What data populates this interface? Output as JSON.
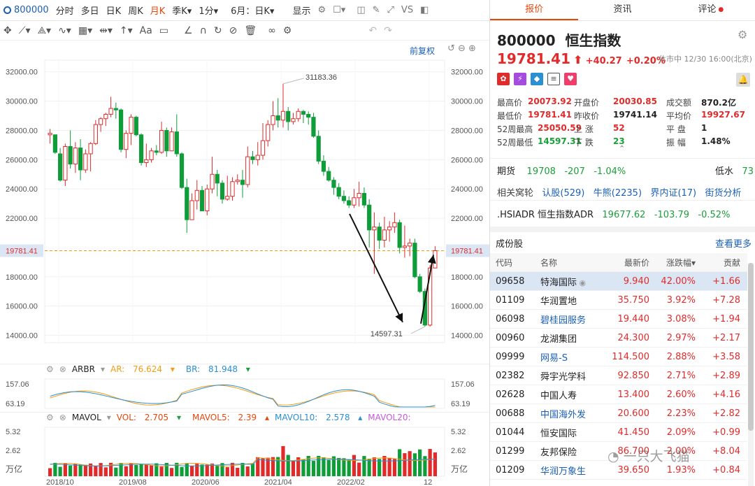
{
  "topbar": {
    "code": "800000",
    "tabs": [
      "分时",
      "多日",
      "日K",
      "周K",
      "月K",
      "季K▾",
      "1分▾",
      "6月：日K▾"
    ],
    "active_tab": "月K",
    "display": "显示",
    "vs": "VS"
  },
  "chart_top": {
    "fq": "前复权"
  },
  "yaxis": {
    "left": [
      "32000.00",
      "30000.00",
      "28000.00",
      "26000.00",
      "24000.00",
      "22000.00",
      "19781.41",
      "18000.00",
      "16000.00",
      "14000.00"
    ],
    "right": [
      "32000.00",
      "30000.00",
      "28000.00",
      "26000.00",
      "24000.00",
      "22000.00",
      "19781.41",
      "18000.00",
      "16000.00",
      "14000.00"
    ],
    "ticks": [
      32000,
      30000,
      28000,
      26000,
      24000,
      22000,
      18000,
      16000,
      14000
    ],
    "current": 19781.41,
    "current_label": "19781.41"
  },
  "annotations": {
    "high": "31183.36",
    "low": "14597.31"
  },
  "chart_data": {
    "type": "candlestick",
    "title": "800000 恒生指数 月K",
    "current": 19781.41,
    "high_label": 31183.36,
    "low_label": 14597.31,
    "ylim": [
      13500,
      32800
    ],
    "candles": [
      [
        27700,
        27800,
        28100,
        27100
      ],
      [
        27700,
        26500,
        27700,
        26400
      ],
      [
        26400,
        24600,
        26800,
        24500
      ],
      [
        24600,
        26900,
        27100,
        24200
      ],
      [
        26900,
        25700,
        28000,
        25400
      ],
      [
        25700,
        26800,
        27200,
        25100
      ],
      [
        26800,
        25300,
        27400,
        24600
      ],
      [
        25300,
        26400,
        26700,
        25100
      ],
      [
        26400,
        27100,
        27200,
        25200
      ],
      [
        27100,
        28400,
        28700,
        27000
      ],
      [
        28400,
        28800,
        28900,
        27900
      ],
      [
        28800,
        29100,
        29200,
        28300
      ],
      [
        29100,
        29500,
        30300,
        28900
      ],
      [
        29500,
        29400,
        29900,
        28800
      ],
      [
        29400,
        26700,
        29500,
        26500
      ],
      [
        26700,
        27800,
        28000,
        26100
      ],
      [
        27800,
        28900,
        29100,
        27000
      ],
      [
        28900,
        27700,
        29000,
        27600
      ],
      [
        27700,
        25800,
        27800,
        25600
      ],
      [
        25800,
        26000,
        27100,
        25500
      ],
      [
        26000,
        26600,
        26800,
        25800
      ],
      [
        26600,
        26500,
        27000,
        26300
      ],
      [
        26500,
        28000,
        28600,
        26400
      ],
      [
        28000,
        26600,
        28200,
        26200
      ],
      [
        26600,
        27900,
        28200,
        26600
      ],
      [
        27900,
        26400,
        29100,
        26200
      ],
      [
        26400,
        24100,
        26500,
        24000
      ],
      [
        24100,
        21900,
        24700,
        21000
      ],
      [
        21900,
        23200,
        23700,
        22500
      ],
      [
        23200,
        23900,
        24600,
        22600
      ],
      [
        23900,
        22500,
        24200,
        22500
      ],
      [
        22500,
        24000,
        24300,
        22200
      ],
      [
        24000,
        25000,
        26200,
        23700
      ],
      [
        25000,
        24400,
        25300,
        23500
      ],
      [
        24400,
        23300,
        24600,
        23000
      ],
      [
        23300,
        23500,
        24900,
        23200
      ],
      [
        23500,
        24500,
        24800,
        23200
      ],
      [
        24500,
        24600,
        25000,
        24300
      ],
      [
        24600,
        24300,
        25300,
        23400
      ],
      [
        24300,
        26200,
        26900,
        24100
      ],
      [
        26200,
        26000,
        26600,
        25700
      ],
      [
        26000,
        26300,
        27200,
        25600
      ],
      [
        26300,
        27300,
        28500,
        26000
      ],
      [
        27300,
        28400,
        28700,
        26900
      ],
      [
        28400,
        29000,
        30000,
        28000
      ],
      [
        29000,
        28700,
        30200,
        28200
      ],
      [
        28700,
        29300,
        31183,
        28200
      ],
      [
        29300,
        28600,
        29600,
        28000
      ],
      [
        28600,
        28800,
        29200,
        28400
      ],
      [
        28800,
        29300,
        29500,
        28600
      ],
      [
        29300,
        29100,
        29400,
        28500
      ],
      [
        29100,
        28900,
        29300,
        28400
      ],
      [
        28900,
        27600,
        29200,
        27500
      ],
      [
        27600,
        25900,
        28000,
        25700
      ],
      [
        25900,
        25200,
        26300,
        24900
      ],
      [
        25200,
        24600,
        25500,
        24500
      ],
      [
        24600,
        24100,
        24800,
        23600
      ],
      [
        24100,
        23500,
        24400,
        23300
      ],
      [
        23500,
        23200,
        23900,
        23000
      ],
      [
        23200,
        22900,
        23500,
        22700
      ],
      [
        22900,
        23400,
        24000,
        22700
      ],
      [
        23400,
        23700,
        24500,
        22800
      ],
      [
        23700,
        22900,
        24100,
        22700
      ],
      [
        22900,
        21200,
        23300,
        20000
      ],
      [
        21200,
        21400,
        22400,
        18200
      ],
      [
        21400,
        20500,
        21700,
        19900
      ],
      [
        20500,
        21200,
        22100,
        20000
      ],
      [
        21200,
        21400,
        21800,
        20400
      ],
      [
        21400,
        21700,
        22400,
        21000
      ],
      [
        21700,
        20000,
        21900,
        19600
      ],
      [
        20000,
        20100,
        21500,
        19300
      ],
      [
        20100,
        20300,
        20600,
        19400
      ],
      [
        20300,
        18000,
        20600,
        17900
      ],
      [
        18000,
        17000,
        18200,
        16900
      ],
      [
        17000,
        14700,
        17200,
        14597
      ],
      [
        14700,
        18600,
        18800,
        14600
      ],
      [
        18600,
        19781,
        20100,
        19500
      ]
    ],
    "arbr": {
      "label": "ARBR",
      "ar_label": "AR:",
      "ar": 76.624,
      "br_label": "BR:",
      "br": 81.948,
      "ymax": 157.06,
      "ymin": 63.19
    },
    "mavol": {
      "label": "MAVOL",
      "vol_label": "VOL:",
      "vol": 2.705,
      "ma5_label": "MAVOL5:",
      "ma5": 2.39,
      "ma10_label": "MAVOL10:",
      "ma10": 2.578,
      "ma20_label": "MAVOL20:",
      "ymax": 5.32,
      "mid": 2.62,
      "unit": "万亿"
    },
    "xlabels": [
      "2018/10",
      "2019/08",
      "2020/06",
      "2021/04",
      "2022/02",
      "12"
    ]
  },
  "quote": {
    "code": "800000",
    "name": "恒生指数",
    "price": "19781.41",
    "change": "+40.27",
    "pct": "+0.20%",
    "status": "休市中 12/30 16:00(北京)",
    "rows": [
      [
        {
          "k": "最高价",
          "v": "20073.92",
          "c": "red"
        },
        {
          "k": "开盘价",
          "v": "20030.85",
          "c": "red"
        },
        {
          "k": "成交额",
          "v": "870.2亿",
          "c": "dark"
        }
      ],
      [
        {
          "k": "最低价",
          "v": "19781.41",
          "c": "red"
        },
        {
          "k": "昨收价",
          "v": "19741.14",
          "c": "dark"
        },
        {
          "k": "平均价",
          "v": "19927.67",
          "c": "red"
        }
      ],
      [
        {
          "k": "52周最高",
          "v": "25050.59",
          "c": "red"
        },
        {
          "k": "上 涨",
          "v": "52",
          "c": "red"
        },
        {
          "k": "平 盘",
          "v": "1",
          "c": "dark"
        }
      ],
      [
        {
          "k": "52周最低",
          "v": "14597.31",
          "c": "green"
        },
        {
          "k": "下 跌",
          "v": "23",
          "c": "green"
        },
        {
          "k": "振 幅",
          "v": "1.48%",
          "c": "dark"
        }
      ]
    ],
    "futures_label": "期货",
    "futures_price": "19708",
    "futures_change": "-207",
    "futures_pct": "-1.04%",
    "low_water_label": "低水",
    "low_water": "73",
    "warrants_label": "相关窝轮",
    "warrants": [
      "认股(529)",
      "牛熊(2235)",
      "界内证(17)",
      "街货分析"
    ],
    "adr_label": ".HSIADR 恒生指数ADR",
    "adr_price": "19677.62",
    "adr_change": "-103.79",
    "adr_pct": "-0.52%"
  },
  "components": {
    "title": "成份股",
    "more": "查看更多",
    "headers": [
      "代码",
      "名称",
      "最新价",
      "涨跌幅▾",
      "贡献"
    ],
    "rows": [
      {
        "code": "09658",
        "name": "特海国际",
        "price": "9.940",
        "pct": "42.00%",
        "contrib": "+1.66",
        "link": false,
        "sel": true
      },
      {
        "code": "01109",
        "name": "华润置地",
        "price": "35.750",
        "pct": "3.92%",
        "contrib": "+7.28",
        "link": false,
        "sel": false
      },
      {
        "code": "06098",
        "name": "碧桂园服务",
        "price": "19.440",
        "pct": "3.08%",
        "contrib": "+1.94",
        "link": true,
        "sel": false
      },
      {
        "code": "00960",
        "name": "龙湖集团",
        "price": "24.300",
        "pct": "2.97%",
        "contrib": "+2.17",
        "link": false,
        "sel": false
      },
      {
        "code": "09999",
        "name": "网易-S",
        "price": "114.500",
        "pct": "2.88%",
        "contrib": "+3.58",
        "link": true,
        "sel": false
      },
      {
        "code": "02382",
        "name": "舜宇光学科",
        "price": "92.850",
        "pct": "2.71%",
        "contrib": "+2.89",
        "link": false,
        "sel": false
      },
      {
        "code": "02628",
        "name": "中国人寿",
        "price": "13.400",
        "pct": "2.60%",
        "contrib": "+4.16",
        "link": false,
        "sel": false
      },
      {
        "code": "00688",
        "name": "中国海外发",
        "price": "20.600",
        "pct": "2.23%",
        "contrib": "+2.82",
        "link": true,
        "sel": false
      },
      {
        "code": "01044",
        "name": "恒安国际",
        "price": "41.450",
        "pct": "2.09%",
        "contrib": "+0.99",
        "link": false,
        "sel": false
      },
      {
        "code": "01299",
        "name": "友邦保险",
        "price": "86.700",
        "pct": "2.00%",
        "contrib": "+8.04",
        "link": false,
        "sel": false
      },
      {
        "code": "01209",
        "name": "华润万象生",
        "price": "39.650",
        "pct": "1.93%",
        "contrib": "+0.84",
        "link": true,
        "sel": false
      }
    ]
  },
  "tabs_right": [
    "报价",
    "资讯",
    "评论"
  ],
  "watermark": "一只大飞猫",
  "colors": {
    "up": "#e12b2b",
    "down": "#0f9d3a",
    "accent": "#e8470b",
    "link": "#1a5fb4"
  }
}
